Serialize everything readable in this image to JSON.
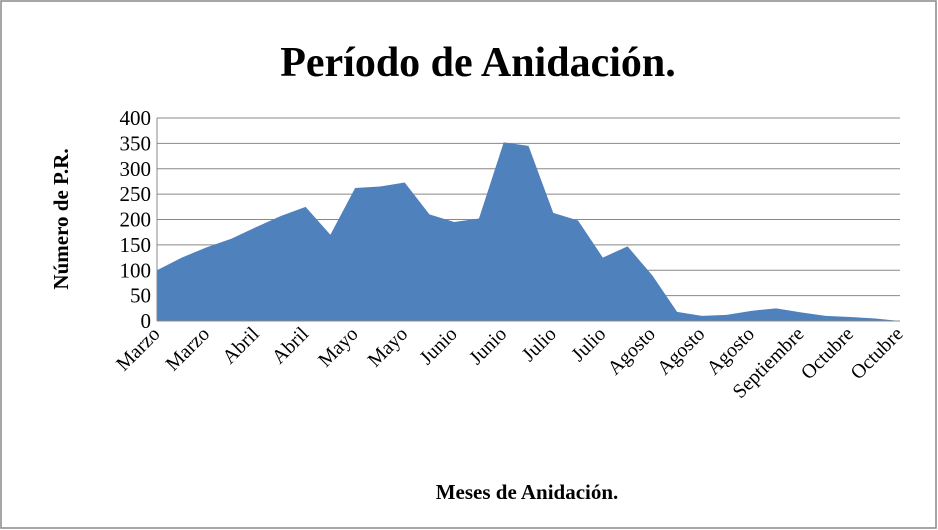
{
  "chart_data": {
    "type": "area",
    "title": "Período de Anidación.",
    "x_label": "Meses de Anidación.",
    "y_label": "Número de P.R.",
    "categories": [
      "Marzo",
      null,
      "Marzo",
      null,
      "Abril",
      null,
      "Abril",
      null,
      "Mayo",
      null,
      "Mayo",
      null,
      "Junio",
      null,
      "Junio",
      null,
      "Julio",
      null,
      "Julio",
      null,
      "Agosto",
      null,
      "Agosto",
      null,
      "Agosto",
      null,
      "Septiembre",
      null,
      "Octubre",
      null,
      "Octubre"
    ],
    "values": [
      100,
      125,
      145,
      162,
      185,
      207,
      225,
      170,
      262,
      265,
      273,
      210,
      195,
      202,
      352,
      345,
      213,
      198,
      125,
      147,
      90,
      18,
      10,
      12,
      20,
      25,
      17,
      10,
      8,
      5,
      0
    ],
    "color": "#4f81bd",
    "ylim": [
      0,
      400
    ],
    "yticks": [
      0,
      50,
      100,
      150,
      200,
      250,
      300,
      350,
      400
    ],
    "grid": true
  }
}
